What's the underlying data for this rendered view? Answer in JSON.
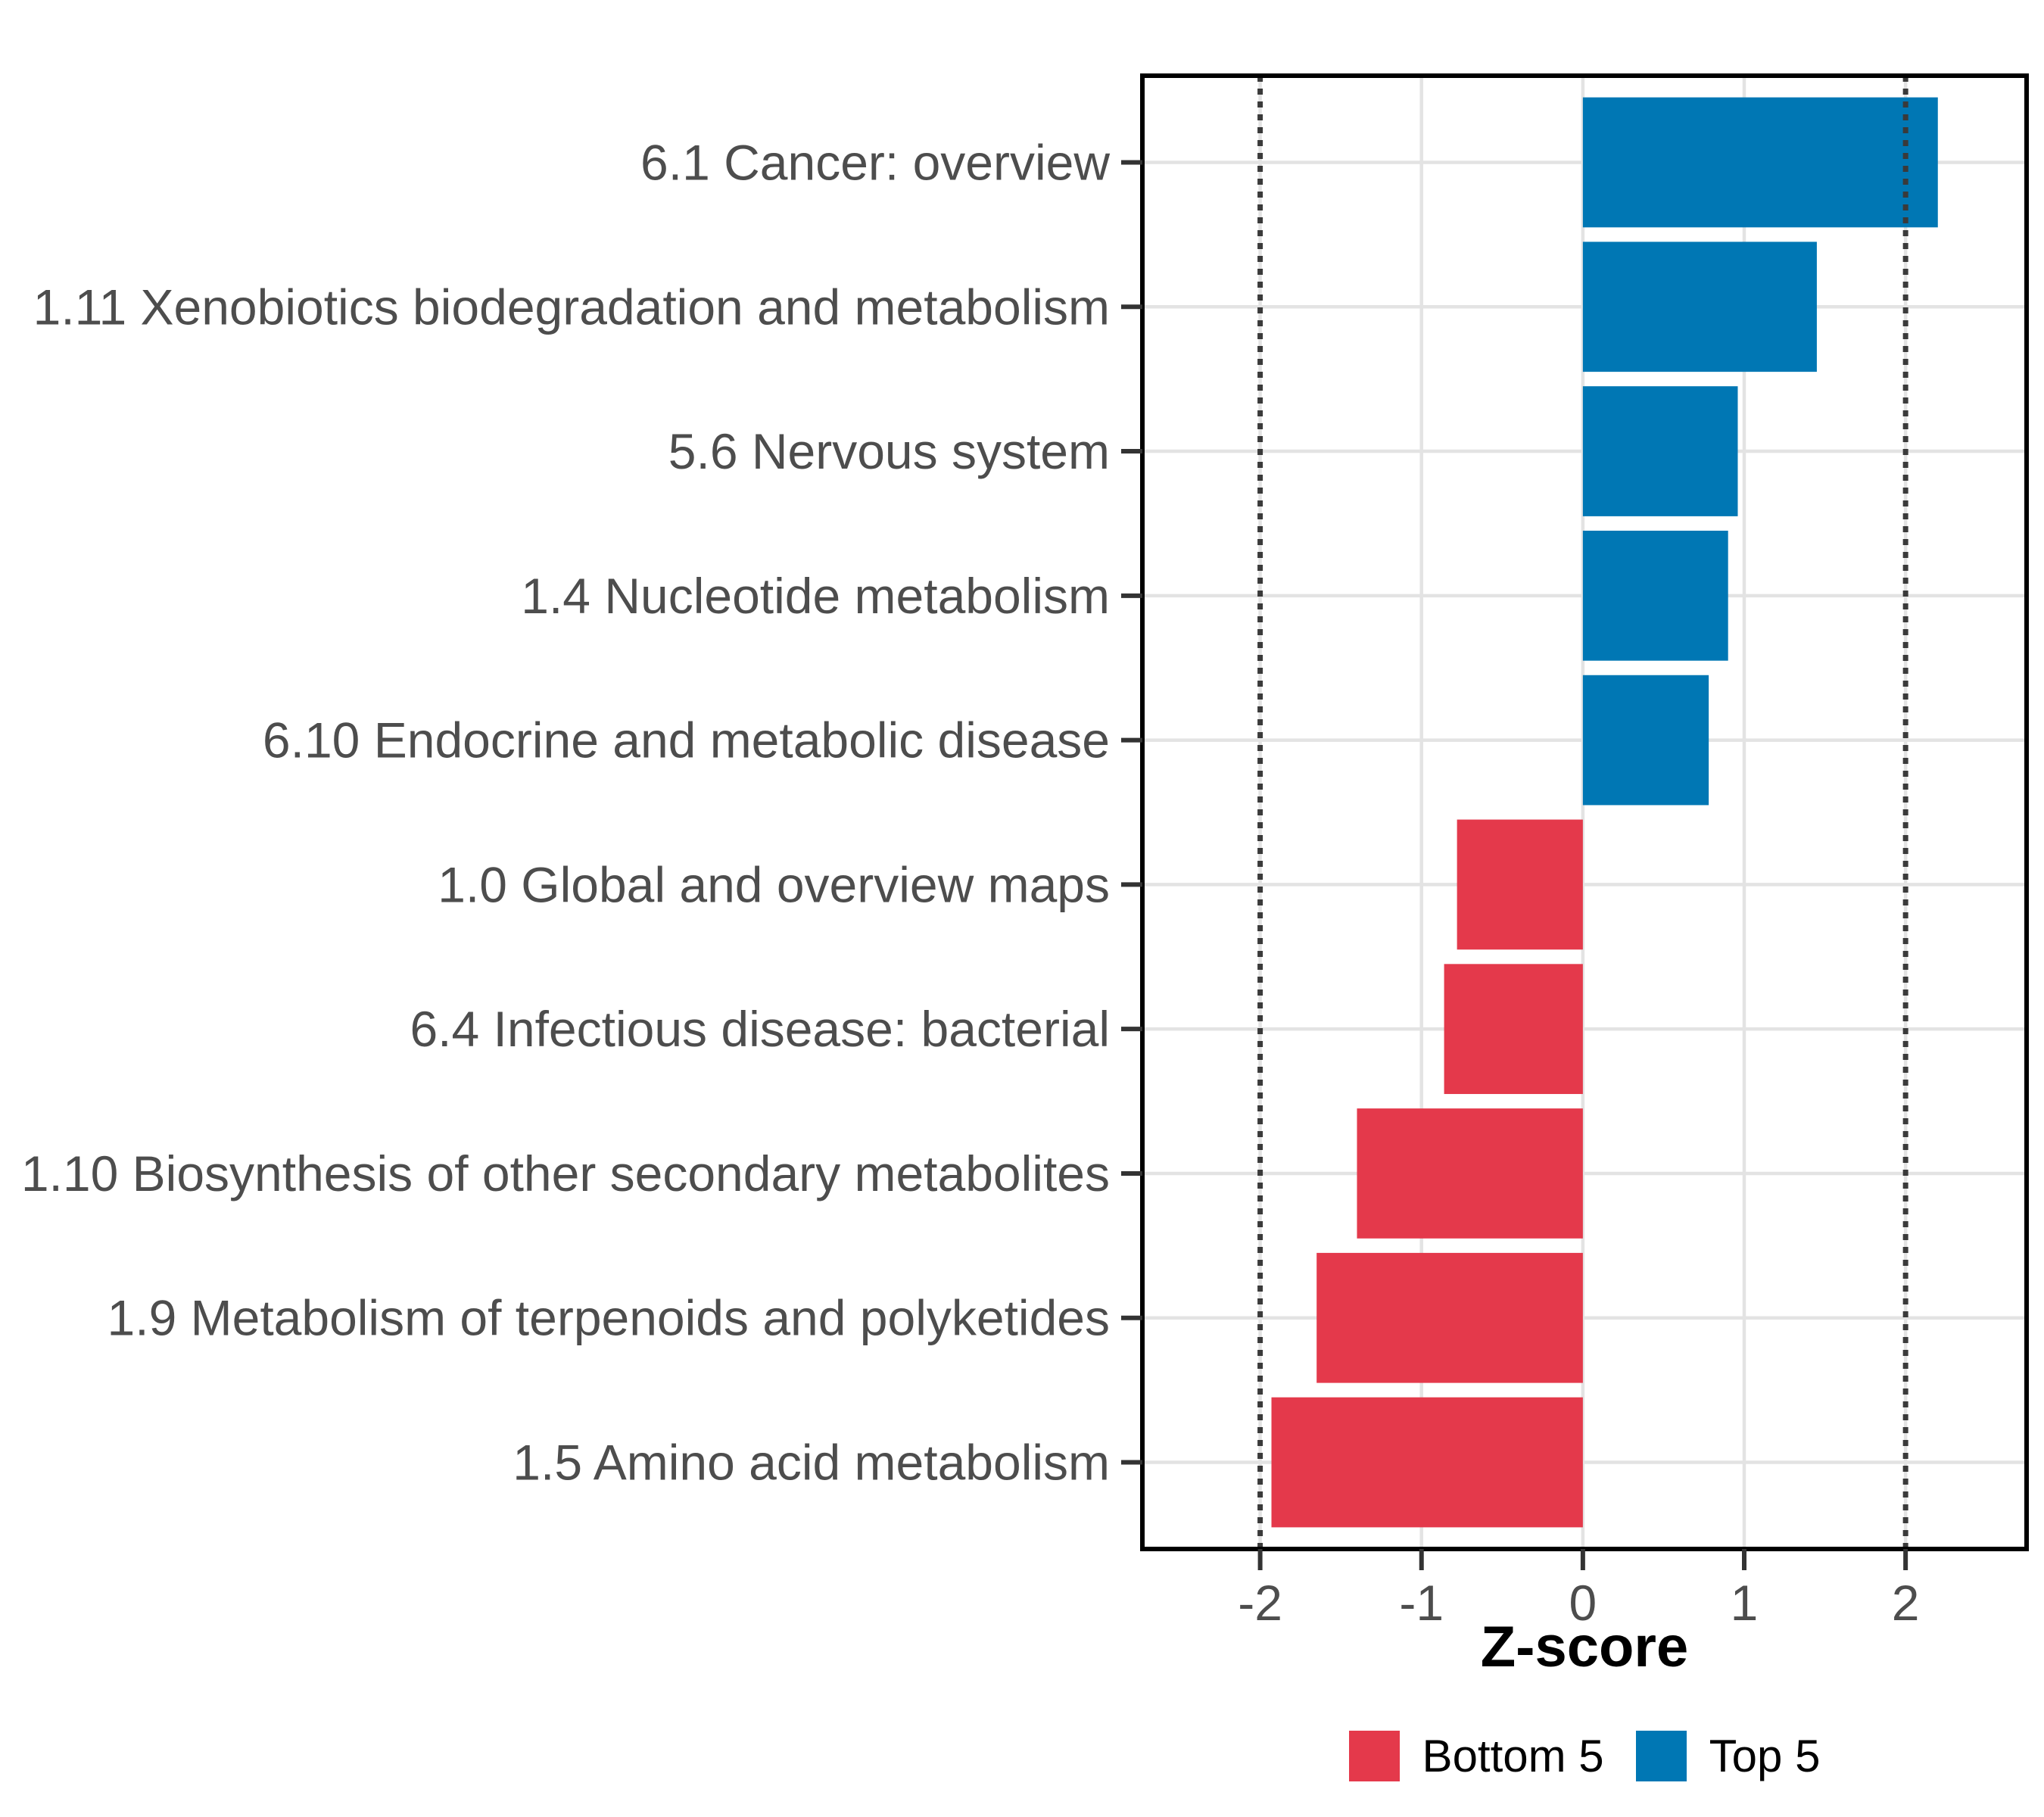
{
  "chart_data": {
    "type": "bar",
    "orientation": "horizontal",
    "title": "",
    "xlabel": "Z-score",
    "ylabel": "",
    "categories": [
      "6.1 Cancer: overview",
      "1.11 Xenobiotics biodegradation and metabolism",
      "5.6 Nervous system",
      "1.4 Nucleotide metabolism",
      "6.10 Endocrine and metabolic disease",
      "1.0 Global and overview maps",
      "6.4 Infectious disease: bacterial",
      "1.10 Biosynthesis of other secondary metabolites",
      "1.9 Metabolism of terpenoids and polyketides",
      "1.5 Amino acid metabolism"
    ],
    "values": [
      2.2,
      1.45,
      0.96,
      0.9,
      0.78,
      -0.78,
      -0.86,
      -1.4,
      -1.65,
      -1.93
    ],
    "groups": [
      "Top 5",
      "Top 5",
      "Top 5",
      "Top 5",
      "Top 5",
      "Bottom 5",
      "Bottom 5",
      "Bottom 5",
      "Bottom 5",
      "Bottom 5"
    ],
    "xticks": [
      "-2",
      "-1",
      "0",
      "1",
      "2"
    ],
    "xtick_values": [
      -2,
      -1,
      0,
      1,
      2
    ],
    "xlim": [
      -2.73,
      2.75
    ],
    "reference_lines": {
      "values": [
        -2,
        2
      ],
      "style": "dotted"
    },
    "grid": "major-only",
    "legend": {
      "position": "bottom",
      "entries": [
        {
          "label": "Bottom 5",
          "color": "#E4394B"
        },
        {
          "label": "Top 5",
          "color": "#0077B4"
        }
      ]
    },
    "colors": {
      "top5": "#0077B4",
      "bottom5": "#E4394B",
      "grid": "#E3E3E3",
      "axis_text": "#4D4D4D",
      "tick_mark": "#333333",
      "panel_border": "#000000",
      "reference_line": "#3A3A3A",
      "background": "#FFFFFF"
    }
  }
}
